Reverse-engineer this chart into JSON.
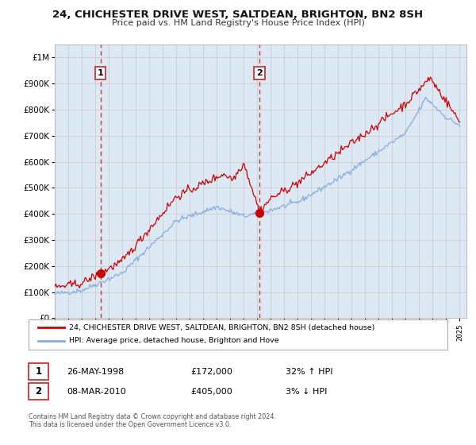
{
  "title": "24, CHICHESTER DRIVE WEST, SALTDEAN, BRIGHTON, BN2 8SH",
  "subtitle": "Price paid vs. HM Land Registry's House Price Index (HPI)",
  "background_color": "#ffffff",
  "plot_bg_color": "#dce9f5",
  "grid_color": "#cccccc",
  "red_line_color": "#cc0000",
  "blue_line_color": "#88aadd",
  "sale1_year": 1998.38,
  "sale1_price": 172000,
  "sale1_label": "1",
  "sale1_date": "26-MAY-1998",
  "sale1_hpi": "32% ↑ HPI",
  "sale2_year": 2010.17,
  "sale2_price": 405000,
  "sale2_label": "2",
  "sale2_date": "08-MAR-2010",
  "sale2_hpi": "3% ↓ HPI",
  "ylim_max": 1050000,
  "legend_line1": "24, CHICHESTER DRIVE WEST, SALTDEAN, BRIGHTON, BN2 8SH (detached house)",
  "legend_line2": "HPI: Average price, detached house, Brighton and Hove",
  "footer": "Contains HM Land Registry data © Crown copyright and database right 2024.\nThis data is licensed under the Open Government Licence v3.0.",
  "yticks": [
    0,
    100000,
    200000,
    300000,
    400000,
    500000,
    600000,
    700000,
    800000,
    900000,
    1000000
  ],
  "ytick_labels": [
    "£0",
    "£100K",
    "£200K",
    "£300K",
    "£400K",
    "£500K",
    "£600K",
    "£700K",
    "£800K",
    "£900K",
    "£1M"
  ],
  "xstart": 1995,
  "xend": 2025
}
